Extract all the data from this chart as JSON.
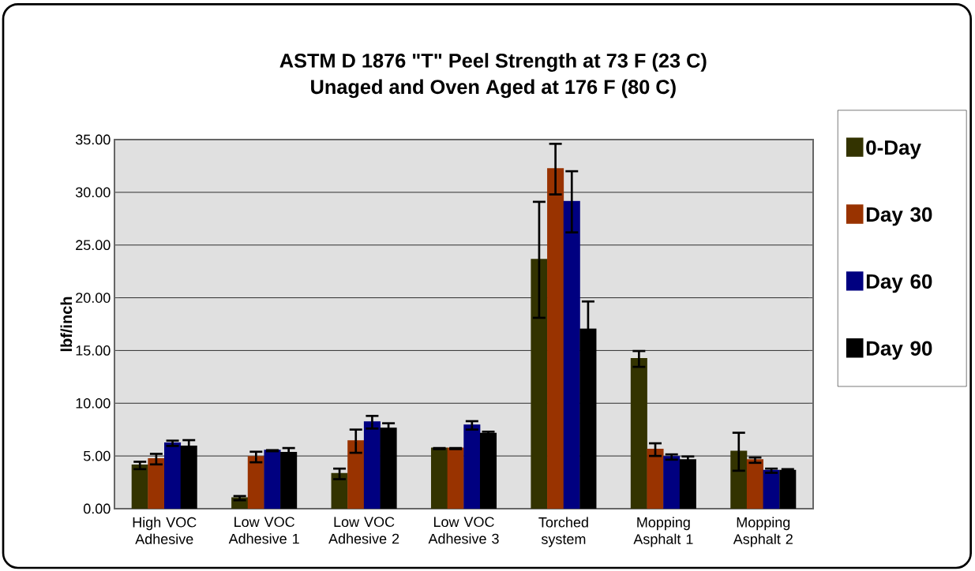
{
  "chart_data": {
    "type": "bar",
    "title": "ASTM D 1876 \"T\" Peel Strength at 73 F (23 C)",
    "subtitle": "Unaged and Oven Aged at 176 F (80 C)",
    "ylabel": "lbf/inch",
    "categories": [
      "High VOC Adhesive",
      "Low VOC Adhesive 1",
      "Low VOC Adhesive 2",
      "Low VOC Adhesive 3",
      "Torched system",
      "Mopping Asphalt 1",
      "Mopping Asphalt 2"
    ],
    "series": [
      {
        "name": "0-Day",
        "color": "#333300",
        "values": [
          4.1,
          1.0,
          3.3,
          5.7,
          23.6,
          14.2,
          5.4
        ],
        "errors": [
          0.35,
          0.2,
          0.5,
          0.05,
          5.5,
          0.75,
          1.8
        ]
      },
      {
        "name": "Day 30",
        "color": "#993300",
        "values": [
          4.7,
          4.9,
          6.4,
          5.7,
          32.2,
          5.6,
          4.6
        ],
        "errors": [
          0.5,
          0.5,
          1.1,
          0.05,
          2.4,
          0.6,
          0.25
        ]
      },
      {
        "name": "Day 60",
        "color": "#000080",
        "values": [
          6.2,
          5.5,
          8.2,
          7.9,
          29.1,
          4.9,
          3.6
        ],
        "errors": [
          0.25,
          0.05,
          0.6,
          0.4,
          2.9,
          0.25,
          0.2
        ]
      },
      {
        "name": "Day 90",
        "color": "#000000",
        "values": [
          5.9,
          5.3,
          7.6,
          7.1,
          17.0,
          4.6,
          3.6
        ],
        "errors": [
          0.6,
          0.45,
          0.5,
          0.2,
          2.65,
          0.35,
          0.15
        ]
      }
    ],
    "ylim": [
      0,
      35
    ],
    "yticks": [
      {
        "value": 0,
        "label": "0.00"
      },
      {
        "value": 5,
        "label": "5.00"
      },
      {
        "value": 10,
        "label": "10.00"
      },
      {
        "value": 15,
        "label": "15.00"
      },
      {
        "value": 20,
        "label": "20.00"
      },
      {
        "value": 25,
        "label": "25.00"
      },
      {
        "value": 30,
        "label": "30.00"
      },
      {
        "value": 35,
        "label": "35.00"
      }
    ],
    "grid": "y",
    "legend": "right"
  }
}
